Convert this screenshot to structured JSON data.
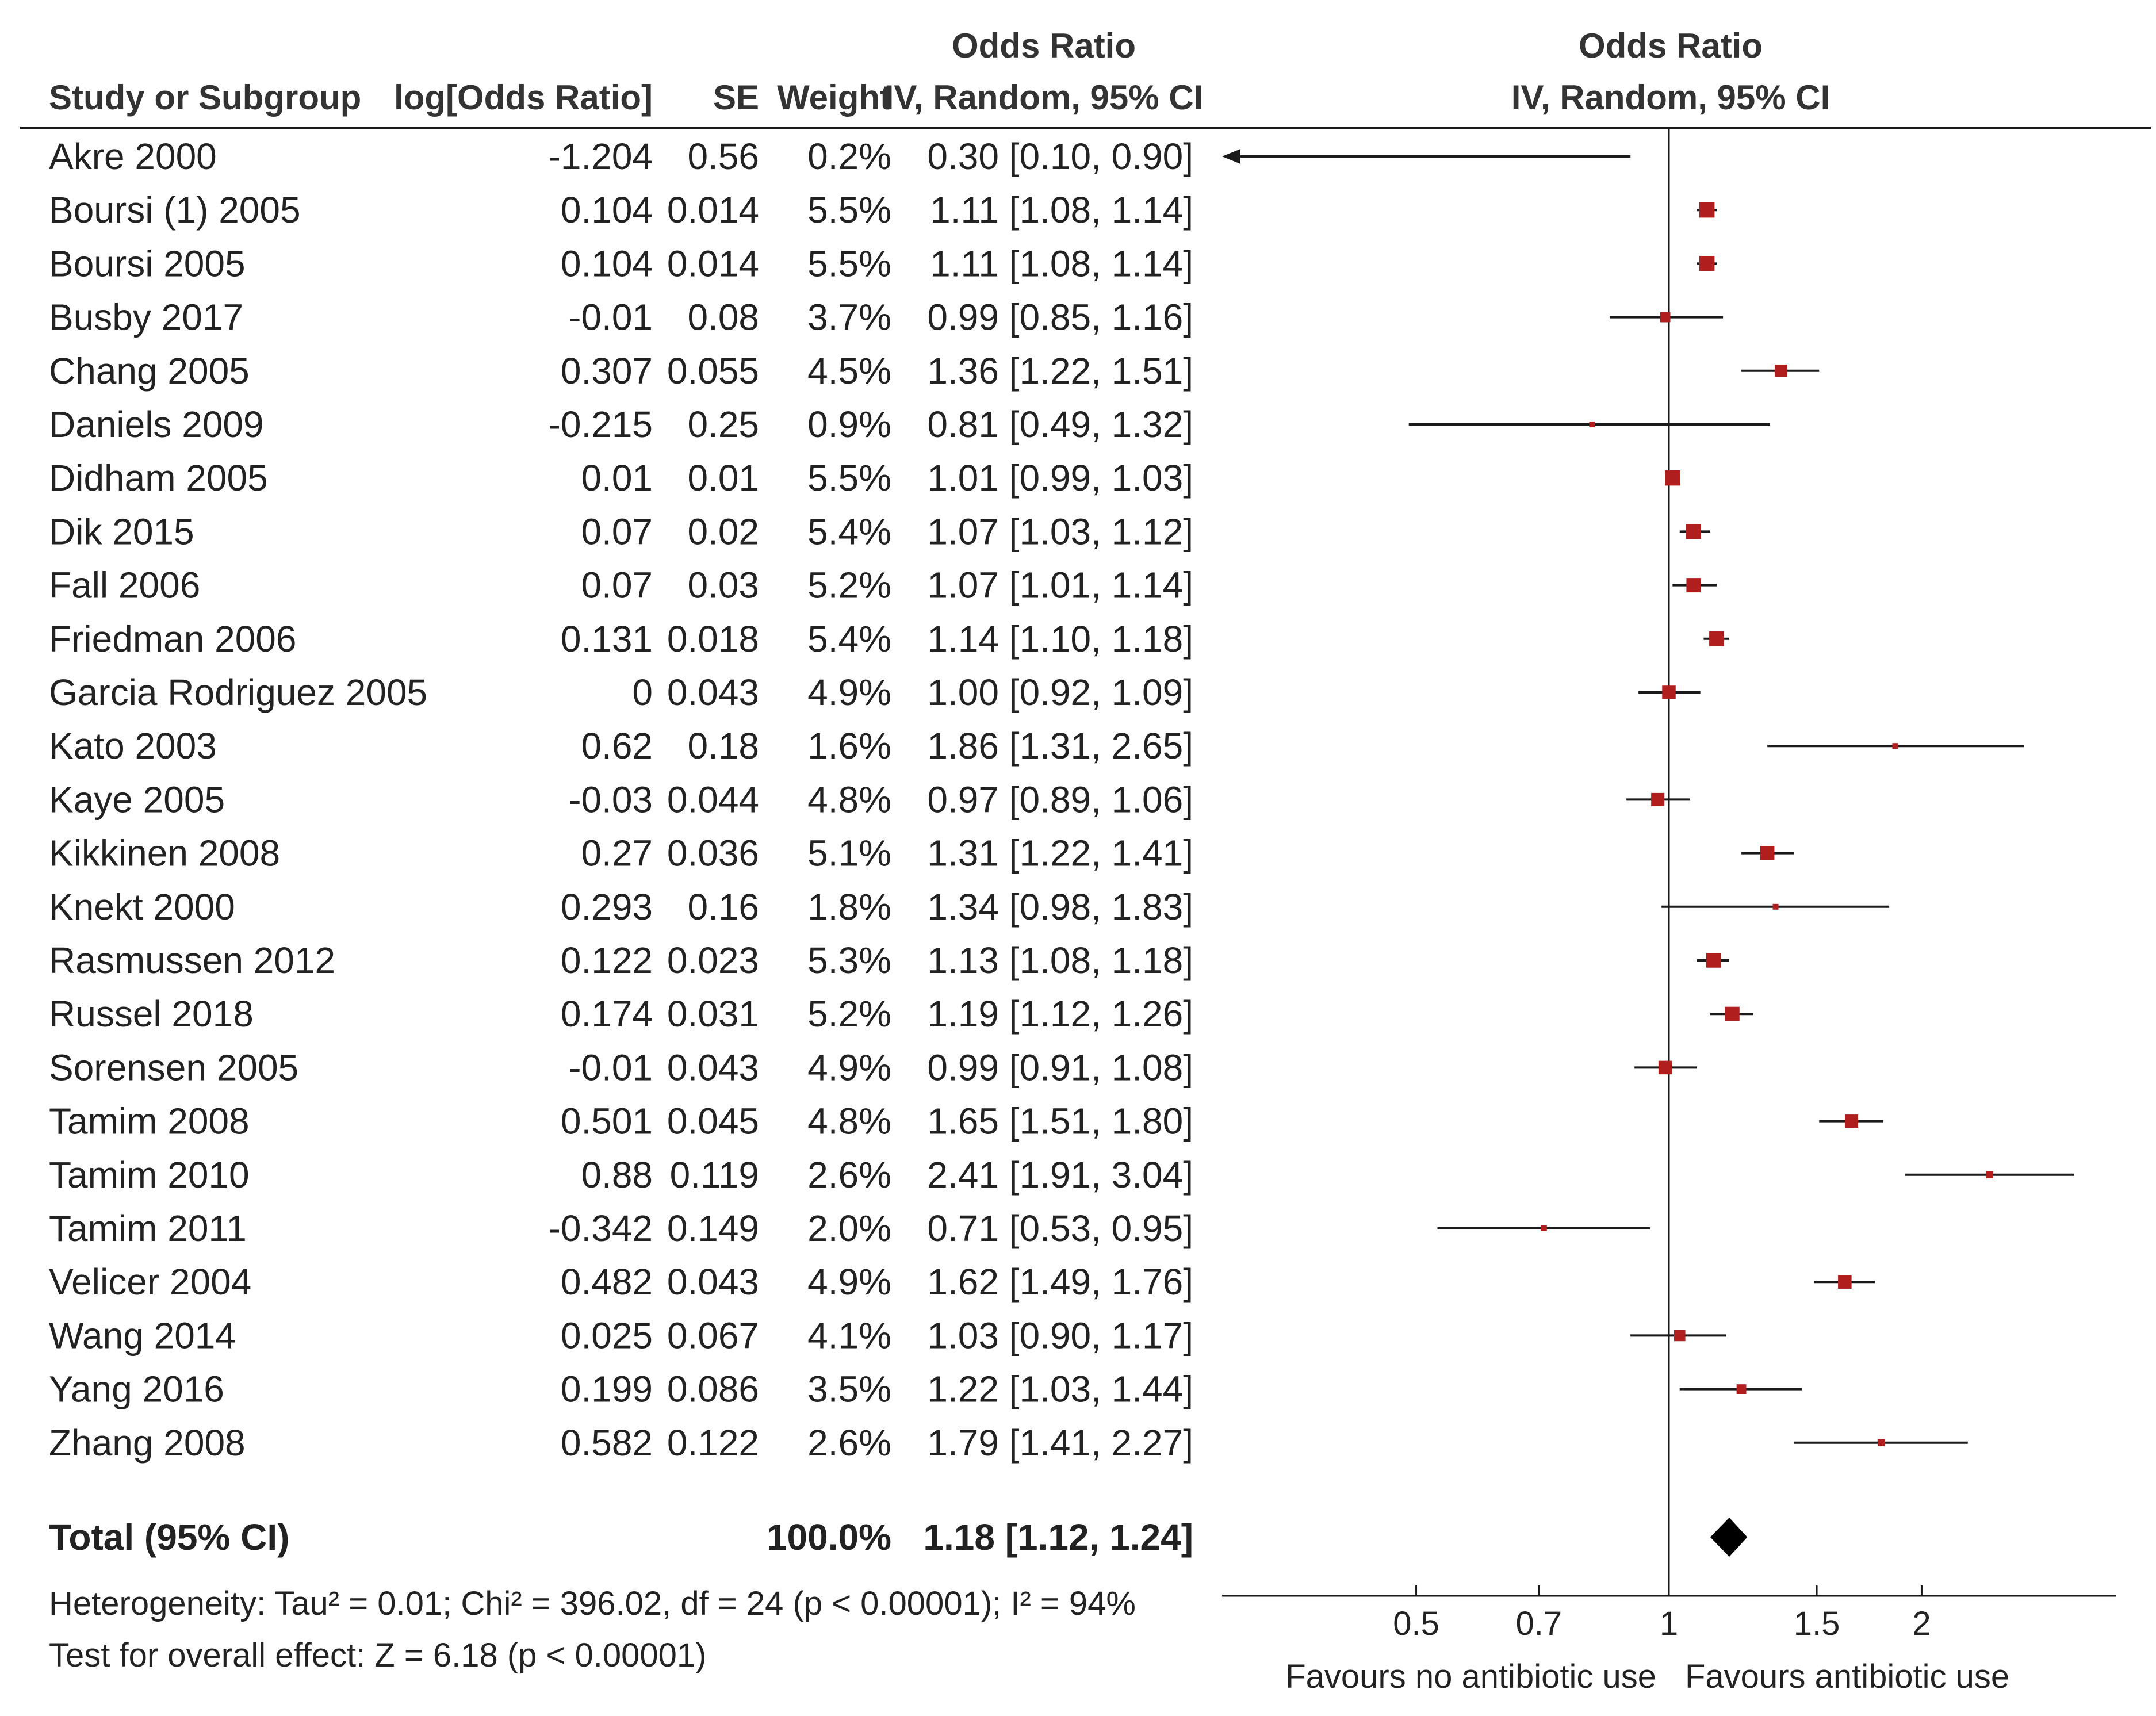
{
  "headers": {
    "study": "Study or Subgroup",
    "log_or": "log[Odds Ratio]",
    "se": "SE",
    "weight": "Weight",
    "or_title": "Odds Ratio",
    "or_method": "IV, Random, 95% CI",
    "plot_title": "Odds Ratio",
    "plot_method": "IV, Random, 95% CI"
  },
  "footer": {
    "heterogeneity": "Heterogeneity: Tau² = 0.01; Chi² = 396.02, df = 24 (p < 0.00001); I² = 94%",
    "overall_effect": "Test for overall effect: Z = 6.18 (p < 0.00001)"
  },
  "colors": {
    "text": "#222222",
    "marker": "#b01e1e",
    "line": "#1a1a1a",
    "diamond": "#000000"
  },
  "chart_data": {
    "type": "forest",
    "scale": "log",
    "xlim": [
      0.3,
      3.5
    ],
    "ticks": [
      {
        "value": 0.5,
        "label": "0.5"
      },
      {
        "value": 0.7,
        "label": "0.7"
      },
      {
        "value": 1,
        "label": "1"
      },
      {
        "value": 1.5,
        "label": "1.5"
      },
      {
        "value": 2,
        "label": "2"
      }
    ],
    "favours_left": "Favours no antibiotic use",
    "favours_right": "Favours antibiotic use",
    "studies": [
      {
        "name": "Akre 2000",
        "log_or": "-1.204",
        "se": "0.56",
        "weight": "0.2%",
        "ci_text": "0.30 [0.10, 0.90]",
        "or": 0.3,
        "lo": 0.1,
        "hi": 0.9
      },
      {
        "name": "Boursi (1) 2005",
        "log_or": "0.104",
        "se": "0.014",
        "weight": "5.5%",
        "ci_text": "1.11 [1.08, 1.14]",
        "or": 1.11,
        "lo": 1.08,
        "hi": 1.14
      },
      {
        "name": "Boursi 2005",
        "log_or": "0.104",
        "se": "0.014",
        "weight": "5.5%",
        "ci_text": "1.11 [1.08, 1.14]",
        "or": 1.11,
        "lo": 1.08,
        "hi": 1.14
      },
      {
        "name": "Busby 2017",
        "log_or": "-0.01",
        "se": "0.08",
        "weight": "3.7%",
        "ci_text": "0.99 [0.85, 1.16]",
        "or": 0.99,
        "lo": 0.85,
        "hi": 1.16
      },
      {
        "name": "Chang 2005",
        "log_or": "0.307",
        "se": "0.055",
        "weight": "4.5%",
        "ci_text": "1.36 [1.22, 1.51]",
        "or": 1.36,
        "lo": 1.22,
        "hi": 1.51
      },
      {
        "name": "Daniels 2009",
        "log_or": "-0.215",
        "se": "0.25",
        "weight": "0.9%",
        "ci_text": "0.81 [0.49, 1.32]",
        "or": 0.81,
        "lo": 0.49,
        "hi": 1.32
      },
      {
        "name": "Didham 2005",
        "log_or": "0.01",
        "se": "0.01",
        "weight": "5.5%",
        "ci_text": "1.01 [0.99, 1.03]",
        "or": 1.01,
        "lo": 0.99,
        "hi": 1.03
      },
      {
        "name": "Dik 2015",
        "log_or": "0.07",
        "se": "0.02",
        "weight": "5.4%",
        "ci_text": "1.07 [1.03, 1.12]",
        "or": 1.07,
        "lo": 1.03,
        "hi": 1.12
      },
      {
        "name": "Fall 2006",
        "log_or": "0.07",
        "se": "0.03",
        "weight": "5.2%",
        "ci_text": "1.07 [1.01, 1.14]",
        "or": 1.07,
        "lo": 1.01,
        "hi": 1.14
      },
      {
        "name": "Friedman 2006",
        "log_or": "0.131",
        "se": "0.018",
        "weight": "5.4%",
        "ci_text": "1.14 [1.10, 1.18]",
        "or": 1.14,
        "lo": 1.1,
        "hi": 1.18
      },
      {
        "name": "Garcia Rodriguez 2005",
        "log_or": "0",
        "se": "0.043",
        "weight": "4.9%",
        "ci_text": "1.00 [0.92, 1.09]",
        "or": 1.0,
        "lo": 0.92,
        "hi": 1.09
      },
      {
        "name": "Kato 2003",
        "log_or": "0.62",
        "se": "0.18",
        "weight": "1.6%",
        "ci_text": "1.86 [1.31, 2.65]",
        "or": 1.86,
        "lo": 1.31,
        "hi": 2.65
      },
      {
        "name": "Kaye 2005",
        "log_or": "-0.03",
        "se": "0.044",
        "weight": "4.8%",
        "ci_text": "0.97 [0.89, 1.06]",
        "or": 0.97,
        "lo": 0.89,
        "hi": 1.06
      },
      {
        "name": "Kikkinen 2008",
        "log_or": "0.27",
        "se": "0.036",
        "weight": "5.1%",
        "ci_text": "1.31 [1.22, 1.41]",
        "or": 1.31,
        "lo": 1.22,
        "hi": 1.41
      },
      {
        "name": "Knekt 2000",
        "log_or": "0.293",
        "se": "0.16",
        "weight": "1.8%",
        "ci_text": "1.34 [0.98, 1.83]",
        "or": 1.34,
        "lo": 0.98,
        "hi": 1.83
      },
      {
        "name": "Rasmussen 2012",
        "log_or": "0.122",
        "se": "0.023",
        "weight": "5.3%",
        "ci_text": "1.13 [1.08, 1.18]",
        "or": 1.13,
        "lo": 1.08,
        "hi": 1.18
      },
      {
        "name": "Russel 2018",
        "log_or": "0.174",
        "se": "0.031",
        "weight": "5.2%",
        "ci_text": "1.19 [1.12, 1.26]",
        "or": 1.19,
        "lo": 1.12,
        "hi": 1.26
      },
      {
        "name": "Sorensen 2005",
        "log_or": "-0.01",
        "se": "0.043",
        "weight": "4.9%",
        "ci_text": "0.99 [0.91, 1.08]",
        "or": 0.99,
        "lo": 0.91,
        "hi": 1.08
      },
      {
        "name": "Tamim 2008",
        "log_or": "0.501",
        "se": "0.045",
        "weight": "4.8%",
        "ci_text": "1.65 [1.51, 1.80]",
        "or": 1.65,
        "lo": 1.51,
        "hi": 1.8
      },
      {
        "name": "Tamim 2010",
        "log_or": "0.88",
        "se": "0.119",
        "weight": "2.6%",
        "ci_text": "2.41 [1.91, 3.04]",
        "or": 2.41,
        "lo": 1.91,
        "hi": 3.04
      },
      {
        "name": "Tamim 2011",
        "log_or": "-0.342",
        "se": "0.149",
        "weight": "2.0%",
        "ci_text": "0.71 [0.53, 0.95]",
        "or": 0.71,
        "lo": 0.53,
        "hi": 0.95
      },
      {
        "name": "Velicer 2004",
        "log_or": "0.482",
        "se": "0.043",
        "weight": "4.9%",
        "ci_text": "1.62 [1.49, 1.76]",
        "or": 1.62,
        "lo": 1.49,
        "hi": 1.76
      },
      {
        "name": "Wang 2014",
        "log_or": "0.025",
        "se": "0.067",
        "weight": "4.1%",
        "ci_text": "1.03 [0.90, 1.17]",
        "or": 1.03,
        "lo": 0.9,
        "hi": 1.17
      },
      {
        "name": "Yang 2016",
        "log_or": "0.199",
        "se": "0.086",
        "weight": "3.5%",
        "ci_text": "1.22 [1.03, 1.44]",
        "or": 1.22,
        "lo": 1.03,
        "hi": 1.44
      },
      {
        "name": "Zhang 2008",
        "log_or": "0.582",
        "se": "0.122",
        "weight": "2.6%",
        "ci_text": "1.79 [1.41, 2.27]",
        "or": 1.79,
        "lo": 1.41,
        "hi": 2.27
      }
    ],
    "total": {
      "name": "Total (95% CI)",
      "weight": "100.0%",
      "ci_text": "1.18 [1.12, 1.24]",
      "or": 1.18,
      "lo": 1.12,
      "hi": 1.24
    }
  }
}
